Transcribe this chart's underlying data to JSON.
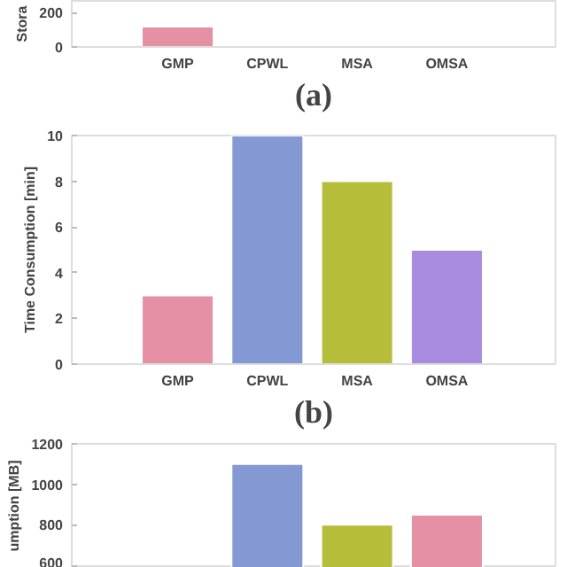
{
  "chart_data": [
    {
      "type": "bar",
      "categories": [
        "GMP",
        "CPWL",
        "MSA",
        "OMSA"
      ],
      "values": [
        120,
        null,
        null,
        null
      ],
      "colors": [
        "#e590a4",
        "#8499d4",
        "#b5bd3a",
        "#e590a4"
      ],
      "ylim": [
        0,
        270
      ],
      "yticks": [
        0,
        200
      ],
      "ylabel": "Stora",
      "xlabel": "(a)",
      "grid": false
    },
    {
      "type": "bar",
      "categories": [
        "GMP",
        "CPWL",
        "MSA",
        "OMSA"
      ],
      "values": [
        3,
        10,
        8,
        5
      ],
      "colors": [
        "#e590a4",
        "#8499d4",
        "#b5bd3a",
        "#a98be0"
      ],
      "ylim": [
        0,
        10
      ],
      "yticks": [
        0,
        2,
        4,
        6,
        8,
        10
      ],
      "ylabel": "Time Consumption [min]",
      "xlabel": "(b)",
      "grid": false
    },
    {
      "type": "bar",
      "categories": [
        null,
        null,
        null,
        null
      ],
      "values": [
        null,
        1100,
        800,
        850
      ],
      "colors": [
        "#e590a4",
        "#8499d4",
        "#b5bd3a",
        "#e590a4"
      ],
      "ylim": [
        587,
        1200
      ],
      "yticks": [
        600,
        800,
        1000,
        1200
      ],
      "ylabel": "umption [MB]",
      "tick_labels": "y",
      "grid": false
    }
  ]
}
